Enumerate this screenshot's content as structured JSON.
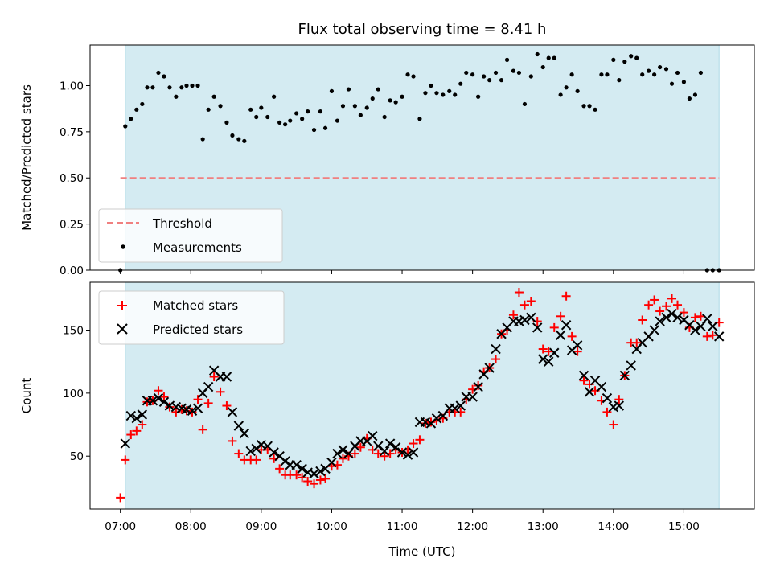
{
  "title": "Flux total observing time = 8.41 h",
  "colors": {
    "shade": "#d4ebf2",
    "shade_edge": "#add8e6",
    "threshold": "#f08080",
    "matched": "#ff0000",
    "predicted": "#000000"
  },
  "x_axis": {
    "label": "Time (UTC)",
    "ticks": [
      "07:00",
      "08:00",
      "09:00",
      "10:00",
      "11:00",
      "12:00",
      "13:00",
      "14:00",
      "15:00"
    ],
    "range_hours": [
      6.57,
      16.0
    ]
  },
  "chart_data": [
    {
      "type": "scatter",
      "ylabel": "Matched/Predicted stars",
      "ylim": [
        0,
        1.22
      ],
      "yticks": [
        "0.00",
        "0.25",
        "0.50",
        "0.75",
        "1.00"
      ],
      "shaded_span_hours": [
        7.07,
        15.5
      ],
      "threshold": {
        "name": "Threshold",
        "value": 0.5,
        "x_hours": [
          7.0,
          15.5
        ]
      },
      "legend": {
        "placement": "lower-left",
        "entries": [
          "Threshold",
          "Measurements"
        ]
      },
      "series": [
        {
          "name": "Measurements",
          "x_hours": [
            7.0,
            7.07,
            7.15,
            7.23,
            7.31,
            7.38,
            7.46,
            7.54,
            7.62,
            7.7,
            7.79,
            7.87,
            7.94,
            8.02,
            8.1,
            8.17,
            8.25,
            8.33,
            8.42,
            8.51,
            8.59,
            8.68,
            8.76,
            8.85,
            8.93,
            9.0,
            9.09,
            9.18,
            9.26,
            9.34,
            9.41,
            9.5,
            9.58,
            9.66,
            9.75,
            9.84,
            9.91,
            10.0,
            10.08,
            10.16,
            10.24,
            10.33,
            10.41,
            10.5,
            10.58,
            10.66,
            10.75,
            10.83,
            10.91,
            11.0,
            11.08,
            11.16,
            11.25,
            11.33,
            11.41,
            11.49,
            11.58,
            11.67,
            11.75,
            11.83,
            11.91,
            12.0,
            12.08,
            12.16,
            12.24,
            12.33,
            12.41,
            12.49,
            12.58,
            12.66,
            12.74,
            12.83,
            12.92,
            13.0,
            13.08,
            13.16,
            13.25,
            13.33,
            13.41,
            13.49,
            13.58,
            13.66,
            13.74,
            13.83,
            13.91,
            14.0,
            14.08,
            14.16,
            14.25,
            14.33,
            14.41,
            14.5,
            14.58,
            14.66,
            14.75,
            14.83,
            14.91,
            15.0,
            15.08,
            15.16,
            15.24,
            15.33,
            15.41,
            15.5
          ],
          "values": [
            0.0,
            0.78,
            0.82,
            0.87,
            0.9,
            0.99,
            0.99,
            1.07,
            1.05,
            0.99,
            0.94,
            0.99,
            1.0,
            1.0,
            1.0,
            0.71,
            0.87,
            0.94,
            0.89,
            0.8,
            0.73,
            0.71,
            0.7,
            0.87,
            0.83,
            0.88,
            0.83,
            0.94,
            0.8,
            0.79,
            0.81,
            0.85,
            0.82,
            0.86,
            0.76,
            0.86,
            0.77,
            0.97,
            0.81,
            0.89,
            0.98,
            0.89,
            0.84,
            0.88,
            0.93,
            0.98,
            0.83,
            0.92,
            0.91,
            0.94,
            1.06,
            1.05,
            0.82,
            0.96,
            1.0,
            0.96,
            0.95,
            0.97,
            0.95,
            1.01,
            1.07,
            1.06,
            0.94,
            1.05,
            1.03,
            1.07,
            1.03,
            1.14,
            1.08,
            1.07,
            0.9,
            1.05,
            1.17,
            1.1,
            1.15,
            1.15,
            0.95,
            0.99,
            1.06,
            0.97,
            0.89,
            0.89,
            0.87,
            1.06,
            1.06,
            1.14,
            1.03,
            1.13,
            1.16,
            1.15,
            1.06,
            1.08,
            1.06,
            1.1,
            1.09,
            1.01,
            1.07,
            1.02,
            0.93,
            0.95,
            1.07,
            0.0,
            0.0,
            0.0
          ]
        }
      ]
    },
    {
      "type": "scatter",
      "ylabel": "Count",
      "ylim": [
        8,
        188
      ],
      "yticks": [
        "50",
        "100",
        "150"
      ],
      "shaded_span_hours": [
        7.07,
        15.5
      ],
      "legend": {
        "placement": "upper-left",
        "entries": [
          "Matched stars",
          "Predicted stars"
        ]
      },
      "series": [
        {
          "name": "Matched stars",
          "marker": "+",
          "x_hours": [
            7.0,
            7.07,
            7.15,
            7.23,
            7.31,
            7.38,
            7.46,
            7.54,
            7.62,
            7.7,
            7.79,
            7.87,
            7.94,
            8.02,
            8.1,
            8.17,
            8.25,
            8.33,
            8.42,
            8.51,
            8.59,
            8.68,
            8.76,
            8.85,
            8.93,
            9.0,
            9.09,
            9.18,
            9.26,
            9.34,
            9.41,
            9.5,
            9.58,
            9.66,
            9.75,
            9.84,
            9.91,
            10.0,
            10.08,
            10.16,
            10.24,
            10.33,
            10.41,
            10.5,
            10.58,
            10.66,
            10.75,
            10.83,
            10.91,
            11.0,
            11.08,
            11.16,
            11.25,
            11.33,
            11.41,
            11.49,
            11.58,
            11.67,
            11.75,
            11.83,
            11.91,
            12.0,
            12.08,
            12.16,
            12.24,
            12.33,
            12.41,
            12.49,
            12.58,
            12.66,
            12.74,
            12.83,
            12.92,
            13.0,
            13.08,
            13.16,
            13.25,
            13.33,
            13.41,
            13.49,
            13.58,
            13.66,
            13.74,
            13.83,
            13.91,
            14.0,
            14.08,
            14.16,
            14.25,
            14.33,
            14.41,
            14.5,
            14.58,
            14.66,
            14.75,
            14.83,
            14.91,
            15.0,
            15.08,
            15.16,
            15.24,
            15.33,
            15.41,
            15.5
          ],
          "values": [
            17,
            47,
            67,
            70,
            75,
            93,
            94,
            102,
            97,
            89,
            85,
            87,
            86,
            85,
            95,
            71,
            92,
            113,
            101,
            90,
            62,
            52,
            47,
            47,
            47,
            55,
            55,
            48,
            40,
            35,
            35,
            35,
            33,
            30,
            28,
            31,
            32,
            42,
            43,
            48,
            50,
            52,
            57,
            64,
            55,
            52,
            50,
            52,
            55,
            53,
            55,
            60,
            63,
            76,
            77,
            78,
            80,
            85,
            85,
            85,
            95,
            103,
            106,
            117,
            120,
            127,
            147,
            150,
            162,
            180,
            170,
            173,
            157,
            135,
            133,
            152,
            161,
            177,
            145,
            133,
            110,
            107,
            102,
            94,
            85,
            75,
            95,
            114,
            140,
            140,
            158,
            170,
            174,
            165,
            169,
            175,
            170,
            164,
            152,
            160,
            161,
            145,
            146,
            156
          ]
        },
        {
          "name": "Predicted stars",
          "marker": "x",
          "x_hours": [
            7.07,
            7.15,
            7.23,
            7.31,
            7.38,
            7.46,
            7.54,
            7.62,
            7.7,
            7.79,
            7.87,
            7.94,
            8.02,
            8.1,
            8.17,
            8.25,
            8.33,
            8.42,
            8.51,
            8.59,
            8.68,
            8.76,
            8.85,
            8.93,
            9.0,
            9.09,
            9.18,
            9.26,
            9.34,
            9.41,
            9.5,
            9.58,
            9.66,
            9.75,
            9.84,
            9.91,
            10.0,
            10.08,
            10.16,
            10.24,
            10.33,
            10.41,
            10.5,
            10.58,
            10.66,
            10.75,
            10.83,
            10.91,
            11.0,
            11.08,
            11.16,
            11.25,
            11.33,
            11.41,
            11.49,
            11.58,
            11.67,
            11.75,
            11.83,
            11.91,
            12.0,
            12.08,
            12.16,
            12.24,
            12.33,
            12.41,
            12.49,
            12.58,
            12.66,
            12.74,
            12.83,
            12.92,
            13.0,
            13.08,
            13.16,
            13.25,
            13.33,
            13.41,
            13.49,
            13.58,
            13.66,
            13.74,
            13.83,
            13.91,
            14.0,
            14.08,
            14.16,
            14.25,
            14.33,
            14.41,
            14.5,
            14.58,
            14.66,
            14.75,
            14.83,
            14.91,
            15.0,
            15.08,
            15.16,
            15.24,
            15.33,
            15.41,
            15.5
          ],
          "values": [
            60,
            82,
            80,
            83,
            94,
            94,
            96,
            93,
            90,
            89,
            88,
            87,
            86,
            88,
            100,
            105,
            118,
            113,
            113,
            85,
            74,
            68,
            54,
            56,
            59,
            58,
            53,
            50,
            46,
            43,
            43,
            40,
            37,
            36,
            38,
            40,
            45,
            52,
            55,
            52,
            58,
            62,
            62,
            66,
            58,
            54,
            60,
            57,
            53,
            51,
            53,
            77,
            77,
            76,
            80,
            82,
            88,
            88,
            90,
            97,
            97,
            105,
            115,
            120,
            135,
            147,
            152,
            157,
            157,
            158,
            160,
            152,
            127,
            125,
            132,
            146,
            154,
            134,
            138,
            114,
            101,
            110,
            105,
            96,
            89,
            90,
            114,
            122,
            135,
            140,
            145,
            150,
            157,
            160,
            163,
            160,
            158,
            154,
            150,
            153,
            159,
            153,
            145
          ]
        }
      ]
    }
  ]
}
